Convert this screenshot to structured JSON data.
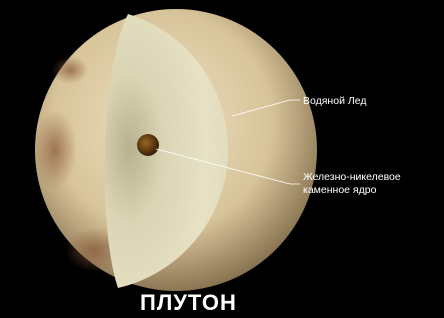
{
  "title": "ПЛУТОН",
  "labels": [
    {
      "lines": [
        "Водяной Лед"
      ]
    },
    {
      "lines": [
        "Железно-никелевое",
        "каменное ядро"
      ]
    }
  ]
}
